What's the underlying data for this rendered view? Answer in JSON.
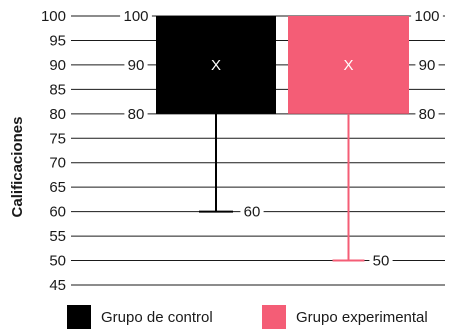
{
  "chart_data": {
    "type": "box",
    "ylabel": "Calificaciones",
    "ylim": [
      45,
      100
    ],
    "yticks": [
      100,
      95,
      90,
      85,
      80,
      75,
      70,
      65,
      60,
      55,
      50,
      45
    ],
    "grid": true,
    "legend_position": "bottom",
    "series": [
      {
        "name": "Grupo de control",
        "color": "#000000",
        "box_low": 80,
        "box_high": 100,
        "mean": 90,
        "whisker_low": 60,
        "mean_marker": "X",
        "labels": {
          "box_high": "100",
          "mean": "90",
          "box_low": "80",
          "whisker_low": "60"
        }
      },
      {
        "name": "Grupo experimental",
        "color": "#f45d76",
        "box_low": 80,
        "box_high": 100,
        "mean": 90,
        "whisker_low": 50,
        "mean_marker": "X",
        "labels": {
          "box_high": "100",
          "mean": "90",
          "box_low": "80",
          "whisker_low": "50"
        }
      }
    ]
  }
}
